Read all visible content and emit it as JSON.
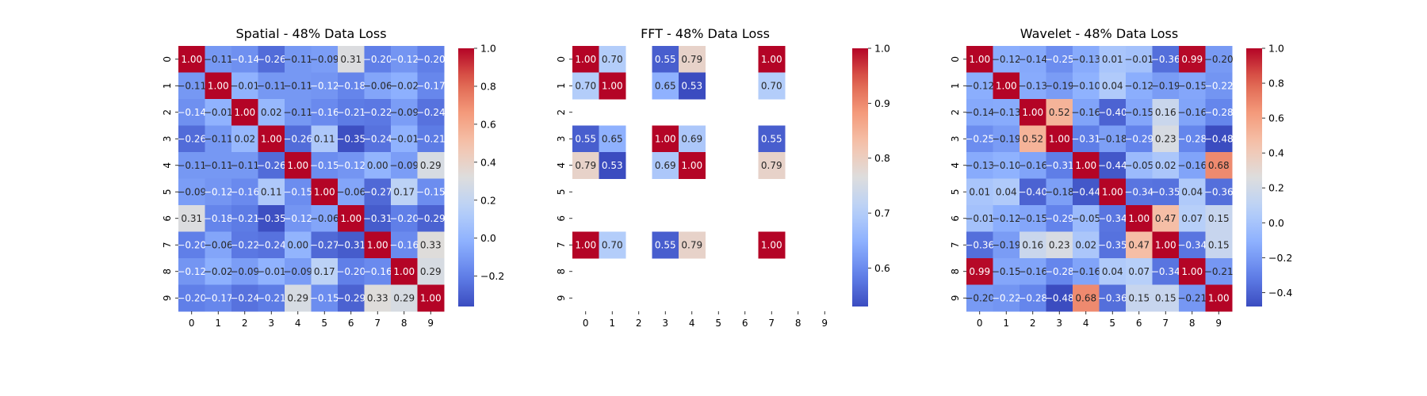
{
  "chart_data": [
    {
      "type": "heatmap",
      "title": "Spatial - 48% Data Loss",
      "x_labels": [
        "0",
        "1",
        "2",
        "3",
        "4",
        "5",
        "6",
        "7",
        "8",
        "9"
      ],
      "y_labels": [
        "0",
        "1",
        "2",
        "3",
        "4",
        "5",
        "6",
        "7",
        "8",
        "9"
      ],
      "colormap": "coolwarm",
      "vmin": -0.36,
      "vmax": 1.0,
      "colorbar_ticks": [
        -0.2,
        0.0,
        0.2,
        0.4,
        0.6,
        0.8,
        1.0
      ],
      "colorbar_tick_labels": [
        "−0.2",
        "0.0",
        "0.2",
        "0.4",
        "0.6",
        "0.8",
        "1.0"
      ],
      "annotation_format": "2 decimals",
      "values": [
        [
          1.0,
          -0.11,
          -0.14,
          -0.26,
          -0.11,
          -0.09,
          0.31,
          -0.2,
          -0.12,
          -0.2
        ],
        [
          -0.11,
          1.0,
          -0.01,
          -0.11,
          -0.11,
          -0.12,
          -0.18,
          -0.06,
          -0.02,
          -0.17
        ],
        [
          -0.14,
          -0.01,
          1.0,
          0.02,
          -0.11,
          -0.16,
          -0.21,
          -0.22,
          -0.09,
          -0.24
        ],
        [
          -0.26,
          -0.11,
          0.02,
          1.0,
          -0.26,
          0.11,
          -0.35,
          -0.24,
          -0.01,
          -0.21
        ],
        [
          -0.11,
          -0.11,
          -0.11,
          -0.26,
          1.0,
          -0.15,
          -0.12,
          0.0,
          -0.09,
          0.29
        ],
        [
          -0.09,
          -0.12,
          -0.16,
          0.11,
          -0.15,
          1.0,
          -0.06,
          -0.27,
          0.17,
          -0.15
        ],
        [
          0.31,
          -0.18,
          -0.21,
          -0.35,
          -0.12,
          -0.06,
          1.0,
          -0.31,
          -0.2,
          -0.29
        ],
        [
          -0.2,
          -0.06,
          -0.22,
          -0.24,
          0.0,
          -0.27,
          -0.31,
          1.0,
          -0.16,
          0.33
        ],
        [
          -0.12,
          -0.02,
          -0.09,
          -0.01,
          -0.09,
          0.17,
          -0.2,
          -0.16,
          1.0,
          0.29
        ],
        [
          -0.2,
          -0.17,
          -0.24,
          -0.21,
          0.29,
          -0.15,
          -0.29,
          0.33,
          0.29,
          1.0
        ]
      ]
    },
    {
      "type": "heatmap",
      "title": "FFT - 48% Data Loss",
      "x_labels": [
        "0",
        "1",
        "2",
        "3",
        "4",
        "5",
        "6",
        "7",
        "8",
        "9"
      ],
      "y_labels": [
        "0",
        "1",
        "2",
        "3",
        "4",
        "5",
        "6",
        "7",
        "8",
        "9"
      ],
      "colormap": "coolwarm",
      "vmin": 0.53,
      "vmax": 1.0,
      "colorbar_ticks": [
        0.6,
        0.7,
        0.8,
        0.9,
        1.0
      ],
      "colorbar_tick_labels": [
        "0.6",
        "0.7",
        "0.8",
        "0.9",
        "1.0"
      ],
      "annotation_format": "2 decimals",
      "missing_cells": "blank",
      "values": [
        [
          1.0,
          0.7,
          null,
          0.55,
          0.79,
          null,
          null,
          1.0,
          null,
          null
        ],
        [
          0.7,
          1.0,
          null,
          0.65,
          0.53,
          null,
          null,
          0.7,
          null,
          null
        ],
        [
          null,
          null,
          null,
          null,
          null,
          null,
          null,
          null,
          null,
          null
        ],
        [
          0.55,
          0.65,
          null,
          1.0,
          0.69,
          null,
          null,
          0.55,
          null,
          null
        ],
        [
          0.79,
          0.53,
          null,
          0.69,
          1.0,
          null,
          null,
          0.79,
          null,
          null
        ],
        [
          null,
          null,
          null,
          null,
          null,
          null,
          null,
          null,
          null,
          null
        ],
        [
          null,
          null,
          null,
          null,
          null,
          null,
          null,
          null,
          null,
          null
        ],
        [
          1.0,
          0.7,
          null,
          0.55,
          0.79,
          null,
          null,
          1.0,
          null,
          null
        ],
        [
          null,
          null,
          null,
          null,
          null,
          null,
          null,
          null,
          null,
          null
        ],
        [
          null,
          null,
          null,
          null,
          null,
          null,
          null,
          null,
          null,
          null
        ]
      ]
    },
    {
      "type": "heatmap",
      "title": "Wavelet - 48% Data Loss",
      "x_labels": [
        "0",
        "1",
        "2",
        "3",
        "4",
        "5",
        "6",
        "7",
        "8",
        "9"
      ],
      "y_labels": [
        "0",
        "1",
        "2",
        "3",
        "4",
        "5",
        "6",
        "7",
        "8",
        "9"
      ],
      "colormap": "coolwarm",
      "vmin": -0.48,
      "vmax": 1.0,
      "colorbar_ticks": [
        -0.4,
        -0.2,
        0.0,
        0.2,
        0.4,
        0.6,
        0.8,
        1.0
      ],
      "colorbar_tick_labels": [
        "−0.4",
        "−0.2",
        "0.0",
        "0.2",
        "0.4",
        "0.6",
        "0.8",
        "1.0"
      ],
      "annotation_format": "2 decimals",
      "values": [
        [
          1.0,
          -0.12,
          -0.14,
          -0.25,
          -0.13,
          0.01,
          -0.01,
          -0.36,
          0.99,
          -0.2
        ],
        [
          -0.12,
          1.0,
          -0.13,
          -0.19,
          -0.1,
          0.04,
          -0.12,
          -0.19,
          -0.15,
          -0.22
        ],
        [
          -0.14,
          -0.13,
          1.0,
          0.52,
          -0.16,
          -0.4,
          -0.15,
          0.16,
          -0.16,
          -0.28
        ],
        [
          -0.25,
          -0.19,
          0.52,
          1.0,
          -0.31,
          -0.18,
          -0.29,
          0.23,
          -0.28,
          -0.48
        ],
        [
          -0.13,
          -0.1,
          -0.16,
          -0.31,
          1.0,
          -0.44,
          -0.05,
          0.02,
          -0.16,
          0.68
        ],
        [
          0.01,
          0.04,
          -0.4,
          -0.18,
          -0.44,
          1.0,
          -0.34,
          -0.35,
          0.04,
          -0.36
        ],
        [
          -0.01,
          -0.12,
          -0.15,
          -0.29,
          -0.05,
          -0.34,
          1.0,
          0.47,
          0.07,
          0.15
        ],
        [
          -0.36,
          -0.19,
          0.16,
          0.23,
          0.02,
          -0.35,
          0.47,
          1.0,
          -0.34,
          0.15
        ],
        [
          0.99,
          -0.15,
          -0.16,
          -0.28,
          -0.16,
          0.04,
          0.07,
          -0.34,
          1.0,
          -0.21
        ],
        [
          -0.2,
          -0.22,
          -0.28,
          -0.48,
          0.68,
          -0.36,
          0.15,
          0.15,
          -0.21,
          1.0
        ]
      ]
    }
  ]
}
